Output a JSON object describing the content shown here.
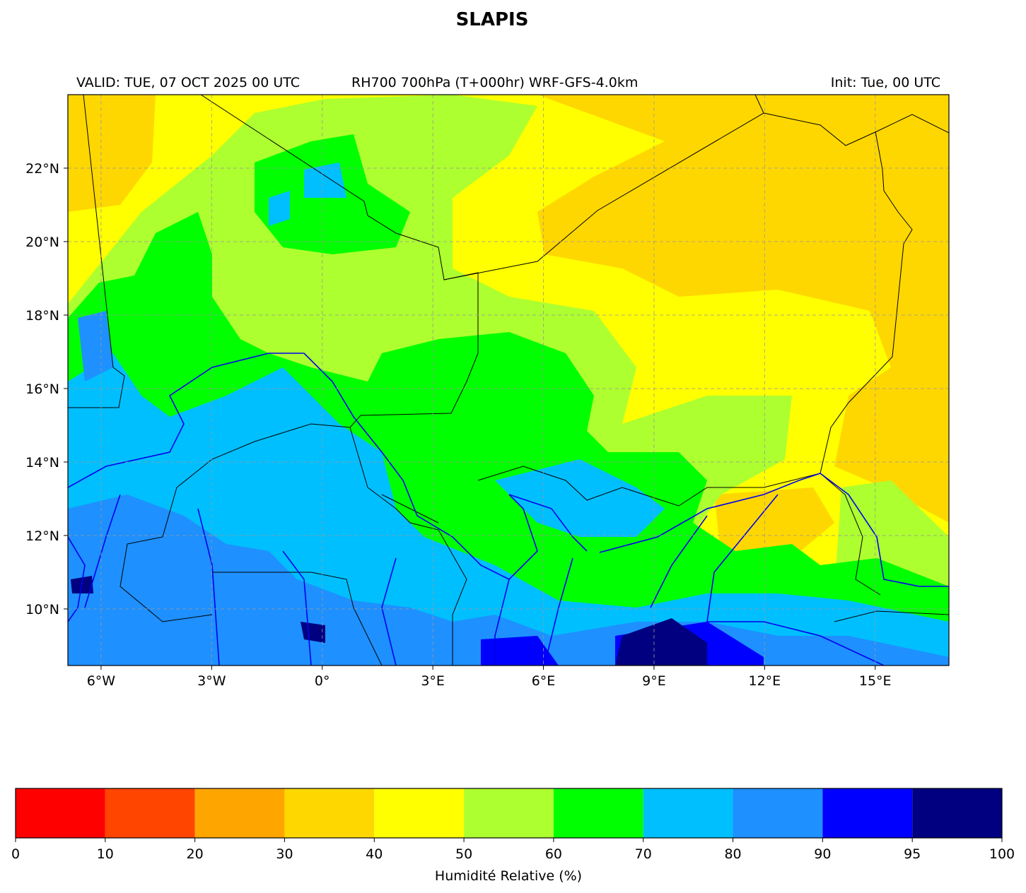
{
  "chart_data": {
    "type": "map",
    "title": "SLAPIS",
    "subtitle_left": "VALID: TUE, 07 OCT 2025 00 UTC",
    "subtitle_center": "RH700 700hPa (T+000hr) WRF-GFS-4.0km",
    "subtitle_right": "Init: Tue, 00 UTC",
    "xlim": [
      -6.9,
      17.0
    ],
    "ylim": [
      8.46,
      24.0
    ],
    "xticks": [
      {
        "value": -6,
        "label": "6°W"
      },
      {
        "value": -3,
        "label": "3°W"
      },
      {
        "value": 0,
        "label": "0°"
      },
      {
        "value": 3,
        "label": "3°E"
      },
      {
        "value": 6,
        "label": "6°E"
      },
      {
        "value": 9,
        "label": "9°E"
      },
      {
        "value": 12,
        "label": "12°E"
      },
      {
        "value": 15,
        "label": "15°E"
      }
    ],
    "yticks": [
      {
        "value": 10,
        "label": "10°N"
      },
      {
        "value": 12,
        "label": "12°N"
      },
      {
        "value": 14,
        "label": "14°N"
      },
      {
        "value": 16,
        "label": "16°N"
      },
      {
        "value": 18,
        "label": "18°N"
      },
      {
        "value": 20,
        "label": "20°N"
      },
      {
        "value": 22,
        "label": "22°N"
      }
    ],
    "grid": true,
    "colorbar": {
      "label": "Humidité Relative (%)",
      "bounds": [
        0,
        10,
        20,
        30,
        40,
        50,
        60,
        70,
        80,
        90,
        95,
        100
      ],
      "colors": [
        "#ff0000",
        "#ff4500",
        "#ffa500",
        "#ffd700",
        "#ffff00",
        "#adff2f",
        "#00ff00",
        "#00bfff",
        "#1e90ff",
        "#0000ff",
        "#000080"
      ]
    }
  }
}
